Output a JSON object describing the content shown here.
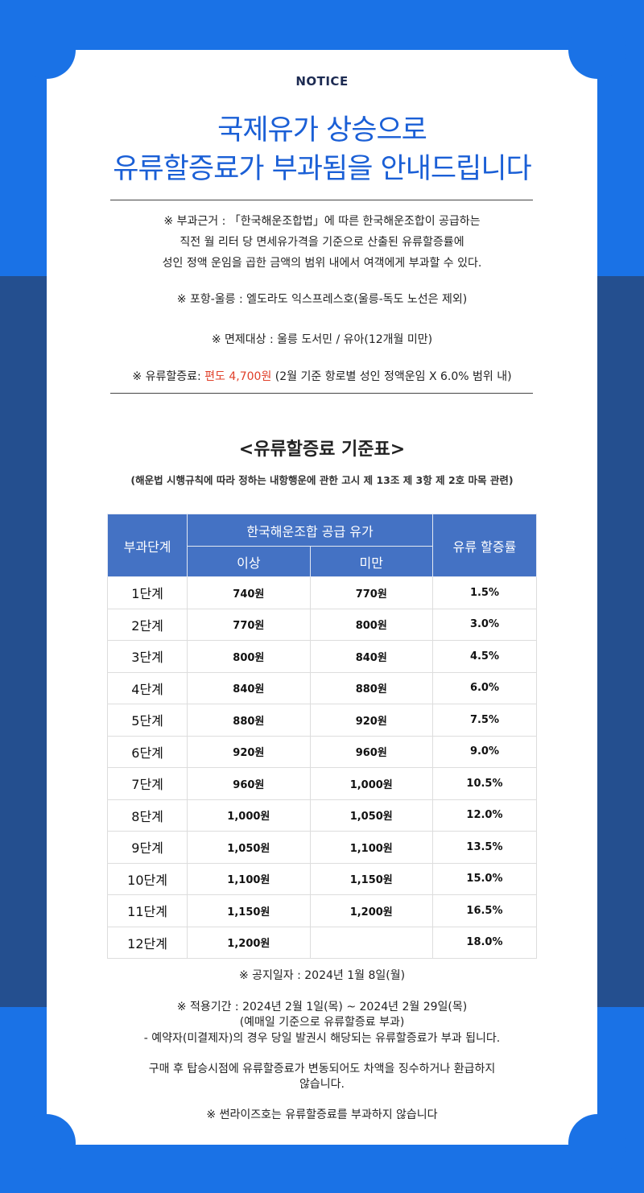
{
  "header": {
    "notice": "NOTICE",
    "title_line1": "국제유가 상승으로",
    "title_line2": "유류할증료가 부과됨을 안내드립니다"
  },
  "info": {
    "basis_lines": [
      "※ 부과근거 : 「한국해운조합법」에 따른 한국해운조합이 공급하는",
      "직전 월 리터 당 면세유가격을 기준으로 산출된 유류할증률에",
      "성인 정액 운임을 곱한 금액의 범위 내에서 여객에게 부과할 수 있다."
    ],
    "route": "※ 포항-울릉 : 엘도라도 익스프레스호(울릉-독도 노선은 제외)",
    "exempt": "※ 면제대상 : 울릉 도서민 / 유아(12개월 미만)",
    "surcharge_prefix": "※ 유류할증료: ",
    "surcharge_amount": "편도 4,700원",
    "surcharge_suffix": " (2월 기준 항로별 성인 정액운임 X 6.0% 범위 내)"
  },
  "table": {
    "title": "<유류할증료 기준표>",
    "subtitle": "(해운법 시행규칙에 따라 정하는 내항행운에 관한 고시 제 13조 제 3항 제 2호 마목 관련)",
    "headers": {
      "stage": "부과단계",
      "supply": "한국해운조합 공급 유가",
      "min": "이상",
      "max": "미만",
      "rate": "유류 할증률"
    },
    "rows": [
      {
        "stage": "1단계",
        "min": "740원",
        "max": "770원",
        "rate": "1.5%"
      },
      {
        "stage": "2단계",
        "min": "770원",
        "max": "800원",
        "rate": "3.0%"
      },
      {
        "stage": "3단계",
        "min": "800원",
        "max": "840원",
        "rate": "4.5%"
      },
      {
        "stage": "4단계",
        "min": "840원",
        "max": "880원",
        "rate": "6.0%"
      },
      {
        "stage": "5단계",
        "min": "880원",
        "max": "920원",
        "rate": "7.5%"
      },
      {
        "stage": "6단계",
        "min": "920원",
        "max": "960원",
        "rate": "9.0%"
      },
      {
        "stage": "7단계",
        "min": "960원",
        "max": "1,000원",
        "rate": "10.5%"
      },
      {
        "stage": "8단계",
        "min": "1,000원",
        "max": "1,050원",
        "rate": "12.0%"
      },
      {
        "stage": "9단계",
        "min": "1,050원",
        "max": "1,100원",
        "rate": "13.5%"
      },
      {
        "stage": "10단계",
        "min": "1,100원",
        "max": "1,150원",
        "rate": "15.0%"
      },
      {
        "stage": "11단계",
        "min": "1,150원",
        "max": "1,200원",
        "rate": "16.5%"
      },
      {
        "stage": "12단계",
        "min": "1,200원",
        "max": "",
        "rate": "18.0%"
      }
    ]
  },
  "footer": {
    "notice_date": "※ 공지일자 : 2024년 1월 8일(월)",
    "period": "※ 적용기간 : 2024년 2월 1일(목) ~ 2024년 2월 29일(목)",
    "period_note": "(예매일 기준으로 유류할증료 부과)",
    "reservation_note": "- 예약자(미결제자)의 경우 당일 발권시 해당되는 유류할증료가 부과 됩니다.",
    "change_note_1": "구매 후 탑승시점에 유류할증료가 변동되어도 차액을 징수하거나 환급하지",
    "change_note_2": "않습니다.",
    "sunrise_note": "※ 썬라이즈호는 유류할증료를 부과하지 않습니다"
  },
  "colors": {
    "background_top": "#1a72e6",
    "background_mid": "#244f8f",
    "header_blue": "#4472c4",
    "title_blue": "#1a5fd6",
    "highlight_red": "#e0402a"
  }
}
